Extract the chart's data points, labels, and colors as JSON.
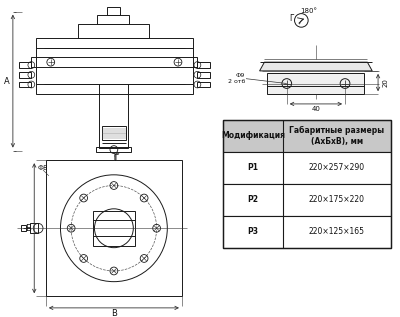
{
  "col_header1": "Модификация",
  "col_header2": "Габаритные размеры\n(АхБхВ), мм",
  "rows": [
    [
      "Р1",
      "220×257×290"
    ],
    [
      "Р2",
      "220×175×220"
    ],
    [
      "Р3",
      "220×125×165"
    ]
  ],
  "draw_color": "#1a1a1a",
  "dim_color": "#333333",
  "table_header_bg": "#c8c8c8",
  "table_row_bg": "#ffffff"
}
